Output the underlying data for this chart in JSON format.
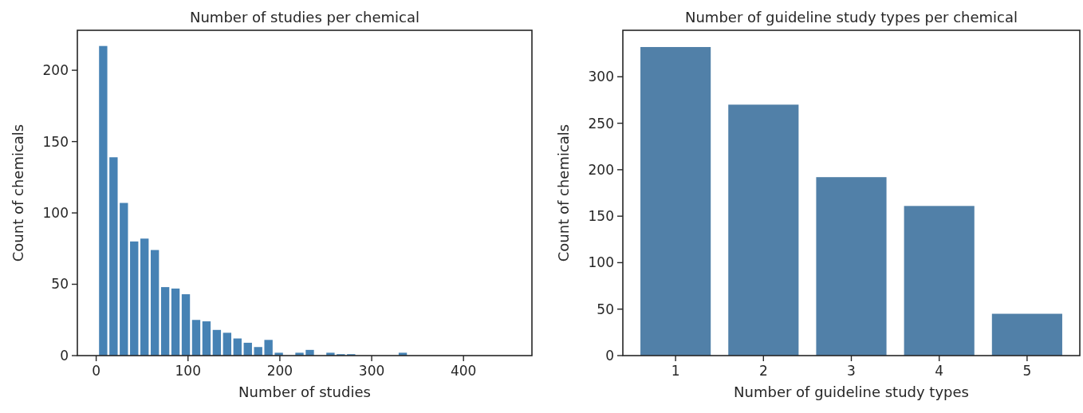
{
  "chart_data": [
    {
      "type": "histogram",
      "title": "Number of studies per chemical",
      "xlabel": "Number of studies",
      "ylabel": "Count of chemicals",
      "color": "#4682b4",
      "bins": [
        2,
        13.25,
        24.5,
        35.75,
        47,
        58.25,
        69.5,
        80.75,
        92,
        103.25,
        114.5,
        125.75,
        137,
        148.25,
        159.5,
        170.75,
        182,
        193.25,
        204.5,
        215.75,
        227,
        238.25,
        249.5,
        260.75,
        272,
        283.25,
        294.5,
        305.75,
        317,
        328.25,
        339.5,
        350.75,
        362,
        373.25,
        384.5,
        395.75,
        407,
        418.25,
        429.5,
        440.75,
        452
      ],
      "values": [
        217,
        139,
        107,
        80,
        82,
        74,
        48,
        47,
        43,
        25,
        24,
        18,
        16,
        12,
        9,
        6,
        11,
        2,
        0,
        2,
        4,
        0,
        2,
        1,
        1,
        0,
        0,
        0,
        0,
        2,
        0,
        0,
        0,
        0,
        0,
        0,
        0,
        0,
        0,
        0
      ],
      "xlim": [
        -20.5,
        474.5
      ],
      "xticks": [
        0,
        100,
        200,
        300,
        400
      ],
      "ylim": [
        0,
        228
      ],
      "yticks": [
        0,
        50,
        100,
        150,
        200
      ]
    },
    {
      "type": "bar",
      "title": "Number of guideline study types per chemical",
      "xlabel": "Number of guideline study types",
      "ylabel": "Count of chemicals",
      "color": "#5180a8",
      "categories": [
        "1",
        "2",
        "3",
        "4",
        "5"
      ],
      "values": [
        332,
        270,
        192,
        161,
        45
      ],
      "ylim": [
        0,
        350
      ],
      "yticks": [
        0,
        50,
        100,
        150,
        200,
        250,
        300
      ]
    }
  ]
}
